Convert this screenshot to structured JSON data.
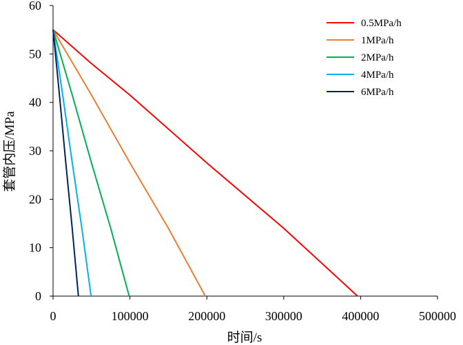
{
  "chart_data": {
    "type": "line",
    "title": "",
    "xlabel": "时间/s",
    "ylabel": "套管内压/MPa",
    "xlim": [
      0,
      500000
    ],
    "ylim": [
      0,
      60
    ],
    "x_ticks": [
      "0",
      "100000",
      "200000",
      "300000",
      "400000",
      "500000"
    ],
    "y_ticks": [
      "0",
      "10",
      "20",
      "30",
      "40",
      "50",
      "60"
    ],
    "grid": false,
    "legend_position": "top-right",
    "series": [
      {
        "name": "0.5MPa/h",
        "color": "#ff0000",
        "x": [
          0,
          50000,
          100000,
          200000,
          300000,
          396000
        ],
        "y": [
          55,
          48,
          41.5,
          27.5,
          14,
          0
        ]
      },
      {
        "name": "1MPa/h",
        "color": "#ed7d31",
        "x": [
          0,
          50000,
          100000,
          150000,
          198000
        ],
        "y": [
          55,
          41.5,
          27.5,
          14,
          0
        ]
      },
      {
        "name": "2MPa/h",
        "color": "#00b050",
        "x": [
          0,
          25000,
          50000,
          75000,
          99000
        ],
        "y": [
          55,
          41.5,
          27.5,
          14,
          0
        ]
      },
      {
        "name": "4MPa/h",
        "color": "#00b0f0",
        "x": [
          0,
          12500,
          25000,
          37500,
          49500
        ],
        "y": [
          55,
          41.5,
          27.5,
          14,
          0
        ]
      },
      {
        "name": "6MPa/h",
        "color": "#002060",
        "x": [
          0,
          8300,
          16600,
          24900,
          33000
        ],
        "y": [
          55,
          41.5,
          27.5,
          14,
          0
        ]
      }
    ]
  }
}
